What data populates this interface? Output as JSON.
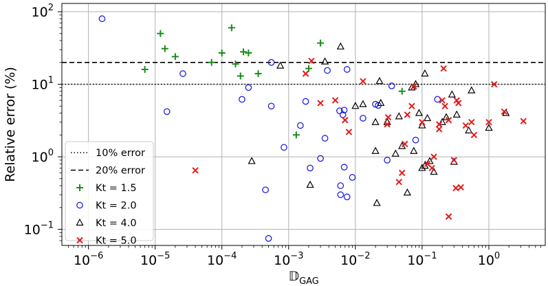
{
  "chart_data": {
    "type": "scatter",
    "title": "",
    "xlabel": "𝔻",
    "xlabel_sub": "GAG",
    "ylabel": "Relative error (%)",
    "xscale": "log",
    "yscale": "log",
    "xlim": [
      4e-07,
      7
    ],
    "ylim": [
      0.06,
      130
    ],
    "grid": true,
    "legend_position": "lower-left",
    "x_ticks": [
      {
        "value": 1e-06,
        "base": "10",
        "exp": "−6"
      },
      {
        "value": 1e-05,
        "base": "10",
        "exp": "−5"
      },
      {
        "value": 0.0001,
        "base": "10",
        "exp": "−4"
      },
      {
        "value": 0.001,
        "base": "10",
        "exp": "−3"
      },
      {
        "value": 0.01,
        "base": "10",
        "exp": "−2"
      },
      {
        "value": 0.1,
        "base": "10",
        "exp": "−1"
      },
      {
        "value": 1,
        "base": "10",
        "exp": "0"
      }
    ],
    "y_ticks": [
      {
        "value": 0.1,
        "base": "10",
        "exp": "−1"
      },
      {
        "value": 1,
        "base": "10",
        "exp": "0"
      },
      {
        "value": 10,
        "base": "10",
        "exp": "1"
      },
      {
        "value": 100,
        "base": "10",
        "exp": "2"
      }
    ],
    "reference_lines": [
      {
        "name": "10% error",
        "y": 10,
        "style": "dotted",
        "color": "#000000"
      },
      {
        "name": "20% error",
        "y": 20,
        "style": "dashed",
        "color": "#000000"
      }
    ],
    "series": [
      {
        "name": "Kt = 1.5",
        "marker": "plus",
        "color": "#1a8c1a",
        "points": [
          [
            7e-06,
            16
          ],
          [
            1.2e-05,
            50
          ],
          [
            1.4e-05,
            31
          ],
          [
            2e-05,
            24
          ],
          [
            7e-05,
            20
          ],
          [
            0.0001,
            27
          ],
          [
            0.00014,
            60
          ],
          [
            0.00016,
            19
          ],
          [
            0.00019,
            13
          ],
          [
            0.00021,
            28
          ],
          [
            0.00025,
            27
          ],
          [
            0.00035,
            14
          ],
          [
            0.002,
            16.5
          ],
          [
            0.003,
            37
          ],
          [
            0.0013,
            2
          ],
          [
            0.05,
            8
          ]
        ]
      },
      {
        "name": "Kt = 2.0",
        "marker": "circle",
        "color": "#1f1fdd",
        "points": [
          [
            1.6e-06,
            80
          ],
          [
            1.5e-05,
            4.2
          ],
          [
            2.6e-05,
            14
          ],
          [
            0.0002,
            6.2
          ],
          [
            0.00025,
            9
          ],
          [
            0.00055,
            20
          ],
          [
            0.00055,
            5
          ],
          [
            0.00045,
            0.35
          ],
          [
            0.0005,
            0.075
          ],
          [
            0.00085,
            1.35
          ],
          [
            0.0015,
            2.7
          ],
          [
            0.0018,
            5.8
          ],
          [
            0.0021,
            0.7
          ],
          [
            0.003,
            0.95
          ],
          [
            0.0035,
            1.8
          ],
          [
            0.0038,
            15.5
          ],
          [
            0.0058,
            4.3
          ],
          [
            0.006,
            0.4
          ],
          [
            0.006,
            0.3
          ],
          [
            0.0065,
            3.8
          ],
          [
            0.0068,
            4.4
          ],
          [
            0.0068,
            0.72
          ],
          [
            0.0075,
            16
          ],
          [
            0.0075,
            0.28
          ],
          [
            0.009,
            0.52
          ],
          [
            0.013,
            3.4
          ],
          [
            0.02,
            5.3
          ],
          [
            0.022,
            5.1
          ],
          [
            0.03,
            0.9
          ],
          [
            0.035,
            9.5
          ],
          [
            0.08,
            1.7
          ],
          [
            0.17,
            6.2
          ]
        ]
      },
      {
        "name": "Kt = 4.0",
        "marker": "triangle",
        "color": "#000000",
        "points": [
          [
            0.00028,
            0.87
          ],
          [
            0.00075,
            18
          ],
          [
            0.0021,
            0.41
          ],
          [
            0.0035,
            20.5
          ],
          [
            0.006,
            33
          ],
          [
            0.01,
            5
          ],
          [
            0.013,
            5.3
          ],
          [
            0.02,
            3
          ],
          [
            0.02,
            1.2
          ],
          [
            0.021,
            0.23
          ],
          [
            0.023,
            11
          ],
          [
            0.024,
            5.5
          ],
          [
            0.03,
            3
          ],
          [
            0.04,
            1.1
          ],
          [
            0.045,
            3.6
          ],
          [
            0.05,
            1.4
          ],
          [
            0.06,
            0.32
          ],
          [
            0.07,
            9
          ],
          [
            0.075,
            1.2
          ],
          [
            0.08,
            10
          ],
          [
            0.09,
            4
          ],
          [
            0.1,
            0.7
          ],
          [
            0.1,
            2.7
          ],
          [
            0.11,
            14
          ],
          [
            0.11,
            0.75
          ],
          [
            0.12,
            3.4
          ],
          [
            0.13,
            0.87
          ],
          [
            0.15,
            0.62
          ],
          [
            0.2,
            3
          ],
          [
            0.23,
            3.5
          ],
          [
            0.28,
            7.2
          ],
          [
            0.3,
            0.85
          ],
          [
            0.33,
            3.8
          ],
          [
            0.5,
            2.3
          ],
          [
            0.55,
            8.2
          ],
          [
            1,
            2.5
          ],
          [
            1.8,
            4
          ]
        ]
      },
      {
        "name": "Kt = 5.0",
        "marker": "x",
        "color": "#e41a1a",
        "points": [
          [
            4e-05,
            0.65
          ],
          [
            0.0018,
            14
          ],
          [
            0.0022,
            21
          ],
          [
            0.003,
            5.5
          ],
          [
            0.005,
            6
          ],
          [
            0.007,
            3.2
          ],
          [
            0.008,
            2.2
          ],
          [
            0.013,
            11
          ],
          [
            0.03,
            2.8
          ],
          [
            0.031,
            3.5
          ],
          [
            0.045,
            0.45
          ],
          [
            0.05,
            0.6
          ],
          [
            0.055,
            1.5
          ],
          [
            0.06,
            3.8
          ],
          [
            0.07,
            5
          ],
          [
            0.075,
            9.3
          ],
          [
            0.1,
            3
          ],
          [
            0.12,
            0.8
          ],
          [
            0.14,
            0.7
          ],
          [
            0.15,
            1
          ],
          [
            0.18,
            2.8
          ],
          [
            0.18,
            2.4
          ],
          [
            0.2,
            6
          ],
          [
            0.21,
            16.5
          ],
          [
            0.22,
            5
          ],
          [
            0.25,
            3.2
          ],
          [
            0.25,
            0.15
          ],
          [
            0.3,
            0.9
          ],
          [
            0.32,
            0.37
          ],
          [
            0.33,
            6
          ],
          [
            0.35,
            5.5
          ],
          [
            0.38,
            0.38
          ],
          [
            0.45,
            2.7
          ],
          [
            0.55,
            3
          ],
          [
            0.6,
            2
          ],
          [
            1,
            3
          ],
          [
            1.2,
            10
          ],
          [
            1.7,
            4.2
          ],
          [
            3.3,
            3.1
          ]
        ]
      }
    ]
  }
}
